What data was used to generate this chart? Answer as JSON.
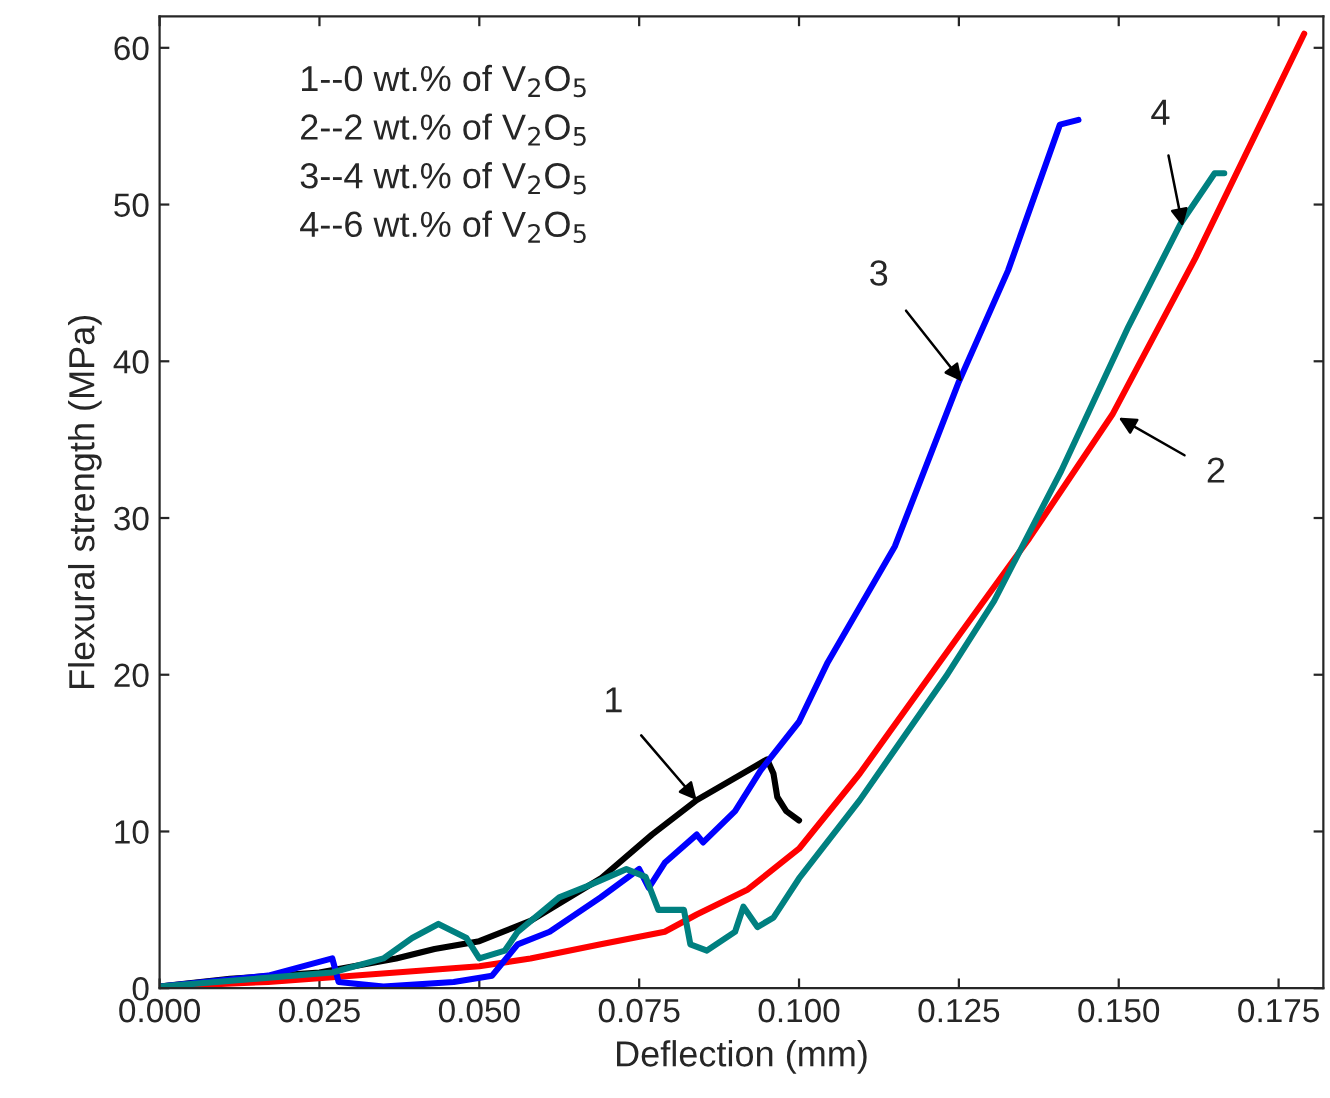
{
  "chart_data": {
    "type": "line",
    "xlabel": "Deflection (mm)",
    "ylabel": "Flexural strength (MPa)",
    "xlim": [
      0,
      0.182
    ],
    "ylim": [
      0,
      62
    ],
    "xticks": [
      {
        "value": 0,
        "label": "0.000"
      },
      {
        "value": 0.025,
        "label": "0.025"
      },
      {
        "value": 0.05,
        "label": "0.050"
      },
      {
        "value": 0.075,
        "label": "0.075"
      },
      {
        "value": 0.1,
        "label": "0.100"
      },
      {
        "value": 0.125,
        "label": "0.125"
      },
      {
        "value": 0.15,
        "label": "0.150"
      },
      {
        "value": 0.175,
        "label": "0.175"
      }
    ],
    "yticks": [
      0,
      10,
      20,
      30,
      40,
      50,
      60
    ],
    "series": [
      {
        "color": "#000000",
        "x": [
          0,
          0.011,
          0.025,
          0.037,
          0.043,
          0.05,
          0.058,
          0.069,
          0.077,
          0.084,
          0.095,
          0.096,
          0.0966,
          0.098,
          0.1
        ],
        "values": [
          0.1,
          0.6,
          1.0,
          1.9,
          2.5,
          3.0,
          4.3,
          7.0,
          9.8,
          12.0,
          14.6,
          13.7,
          12.2,
          11.3,
          10.7
        ]
      },
      {
        "color": "#ff0000",
        "x": [
          0,
          0.017,
          0.037,
          0.05,
          0.058,
          0.069,
          0.079,
          0.084,
          0.092,
          0.1,
          0.1095,
          0.125,
          0.136,
          0.149,
          0.162,
          0.172,
          0.179
        ],
        "values": [
          0.1,
          0.4,
          1.0,
          1.4,
          1.9,
          2.8,
          3.6,
          4.7,
          6.3,
          8.9,
          13.7,
          22.5,
          28.7,
          36.6,
          46.6,
          55.0,
          60.9
        ]
      },
      {
        "color": "#0000ff",
        "x": [
          0,
          0.017,
          0.027,
          0.028,
          0.035,
          0.046,
          0.052,
          0.056,
          0.061,
          0.069,
          0.075,
          0.0765,
          0.079,
          0.084,
          0.085,
          0.09,
          0.094,
          0.1,
          0.1045,
          0.115,
          0.125,
          0.1327,
          0.1408,
          0.1437
        ],
        "values": [
          0.1,
          0.8,
          1.9,
          0.4,
          0.1,
          0.4,
          0.8,
          2.8,
          3.6,
          5.8,
          7.6,
          6.4,
          8.0,
          9.8,
          9.3,
          11.3,
          13.9,
          17.0,
          20.8,
          28.2,
          38.7,
          45.8,
          55.1,
          55.4
        ]
      },
      {
        "color": "#008080",
        "x": [
          0,
          0.027,
          0.035,
          0.0395,
          0.0436,
          0.048,
          0.05,
          0.054,
          0.056,
          0.0625,
          0.0668,
          0.073,
          0.076,
          0.078,
          0.082,
          0.083,
          0.0856,
          0.09,
          0.0913,
          0.0935,
          0.096,
          0.1,
          0.1095,
          0.123,
          0.1305,
          0.141,
          0.1515,
          0.1597,
          0.165,
          0.1665
        ],
        "values": [
          0.1,
          1.0,
          1.9,
          3.2,
          4.1,
          3.2,
          1.9,
          2.4,
          3.6,
          5.8,
          6.5,
          7.6,
          7.1,
          5.0,
          5.0,
          2.8,
          2.4,
          3.6,
          5.2,
          3.9,
          4.5,
          7.0,
          12.0,
          19.9,
          24.7,
          33.0,
          42.2,
          48.8,
          52.0,
          52.0
        ]
      }
    ],
    "annotations": [
      "1--0 wt.% of V$_{2}$O$_{5}$",
      "2--2 wt.% of V$_{2}$O$_{5}$",
      "3--4 wt.% of V$_{2}$O$_{5}$",
      "4--6 wt.% of V$_{2}$O$_{5}$",
      {
        "text": "1",
        "x": 0.084,
        "y": 12.0
      },
      {
        "text": "2",
        "x": 0.15,
        "y": 36.4
      },
      {
        "text": "3",
        "x": 0.1255,
        "y": 38.7
      },
      {
        "text": "4",
        "x": 0.16,
        "y": 48.6
      }
    ]
  }
}
